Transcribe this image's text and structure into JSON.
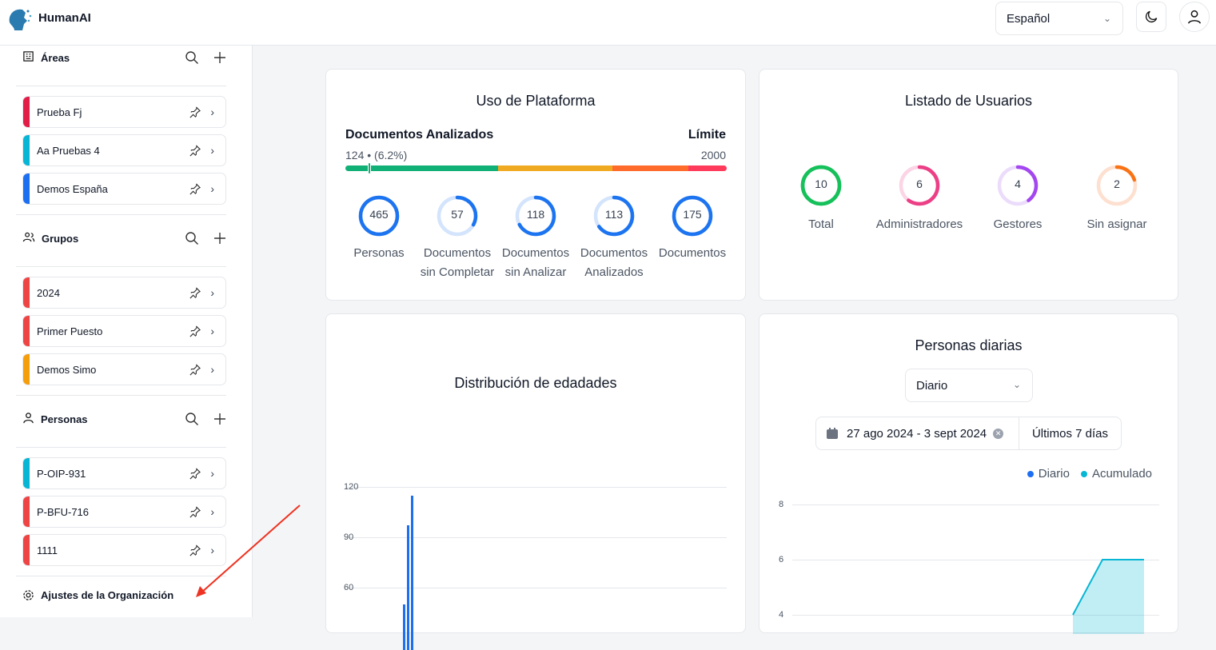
{
  "header": {
    "brand": "HumanAI",
    "language": "Español"
  },
  "sidebar": {
    "sections": [
      {
        "title": "Áreas",
        "items": [
          {
            "label": "Prueba Fj",
            "color": "#e11d48"
          },
          {
            "label": "Aa Pruebas 4",
            "color": "#06b6d4"
          },
          {
            "label": "Demos España",
            "color": "#1d6ff2"
          }
        ]
      },
      {
        "title": "Grupos",
        "items": [
          {
            "label": "2024",
            "color": "#ef4444"
          },
          {
            "label": "Primer Puesto",
            "color": "#ef4444"
          },
          {
            "label": "Demos Simo",
            "color": "#f59e0b"
          }
        ]
      },
      {
        "title": "Personas",
        "items": [
          {
            "label": "P-OIP-931",
            "color": "#06b6d4"
          },
          {
            "label": "P-BFU-716",
            "color": "#ef4444"
          },
          {
            "label": "1111",
            "color": "#ef4444"
          }
        ]
      }
    ],
    "settings": "Ajustes de la Organización"
  },
  "usage": {
    "title": "Uso de Plataforma",
    "docs_label": "Documentos Analizados",
    "limit_label": "Límite",
    "used": "124 • (6.2%)",
    "limit": "2000",
    "progress_percent": 6.2,
    "rings": [
      {
        "value": "465",
        "label": "Personas",
        "fraction": 1
      },
      {
        "value": "57",
        "label": "Documentos sin Completar",
        "fraction": 0.33
      },
      {
        "value": "118",
        "label": "Documentos sin Analizar",
        "fraction": 0.67
      },
      {
        "value": "113",
        "label": "Documentos Analizados",
        "fraction": 0.65
      },
      {
        "value": "175",
        "label": "Documentos",
        "fraction": 1
      }
    ]
  },
  "users": {
    "title": "Listado de Usuarios",
    "rings": [
      {
        "value": "10",
        "label": "Total",
        "fraction": 1,
        "color": "#16c05a",
        "track": "#16c05a"
      },
      {
        "value": "6",
        "label": "Administradores",
        "fraction": 0.6,
        "color": "#ec3f86",
        "track": "#fbd5e5"
      },
      {
        "value": "4",
        "label": "Gestores",
        "fraction": 0.4,
        "color": "#a347f0",
        "track": "#ecdcfb"
      },
      {
        "value": "2",
        "label": "Sin asignar",
        "fraction": 0.2,
        "color": "#f97316",
        "track": "#fde0d0"
      }
    ]
  },
  "chart_data": [
    {
      "type": "bar",
      "title": "Distribución de edadades",
      "yticks": [
        "120",
        "90",
        "60"
      ],
      "values": [
        50,
        97,
        115
      ],
      "color": "#1d6ff2"
    },
    {
      "type": "area",
      "title": "Personas diarias",
      "yticks": [
        "8",
        "6",
        "4"
      ],
      "series": [
        {
          "name": "Diario",
          "color": "#1d6ff2",
          "values": []
        },
        {
          "name": "Acumulado",
          "color": "#06b6d4",
          "values": [
            4,
            6,
            6
          ]
        }
      ]
    }
  ],
  "daily": {
    "period": "Diario",
    "date_range": "27 ago 2024 - 3 sept 2024",
    "preset": "Últimos 7 días"
  }
}
